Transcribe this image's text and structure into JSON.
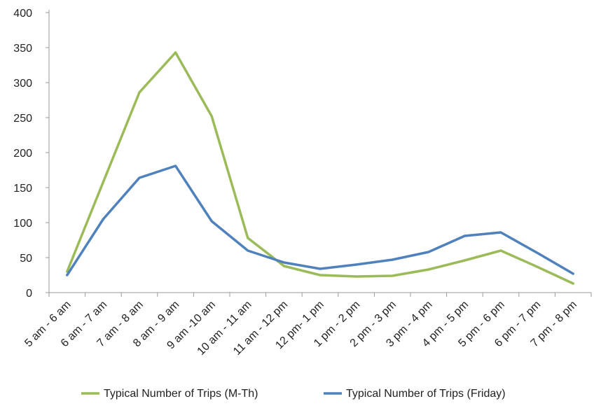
{
  "chart_data": {
    "type": "line",
    "title": "",
    "xlabel": "",
    "ylabel": "",
    "categories": [
      "5 am - 6 am",
      "6 am - 7 am",
      "7 am - 8 am",
      "8 am - 9 am",
      "9 am -10 am",
      "10 am - 11 am",
      "11 am - 12 pm",
      "12 pm- 1 pm",
      "1 pm - 2 pm",
      "2 pm - 3 pm",
      "3 pm - 4 pm",
      "4 pm - 5 pm",
      "5 pm - 6 pm",
      "6 pm - 7 pm",
      "7 pm - 8 pm"
    ],
    "ylim": [
      0,
      400
    ],
    "yticks": [
      "0",
      "50",
      "100",
      "150",
      "200",
      "250",
      "300",
      "350",
      "400"
    ],
    "grid": false,
    "legend_position": "bottom",
    "series": [
      {
        "name": "Typical Number of Trips (M-Th)",
        "color": "#9bbb59",
        "values": [
          30,
          158,
          286,
          343,
          252,
          78,
          38,
          25,
          23,
          24,
          33,
          46,
          60,
          37,
          13
        ]
      },
      {
        "name": "Typical Number of Trips (Friday)",
        "color": "#4f81bd",
        "values": [
          25,
          105,
          164,
          181,
          102,
          60,
          43,
          34,
          40,
          47,
          58,
          81,
          86,
          57,
          27
        ]
      }
    ]
  }
}
